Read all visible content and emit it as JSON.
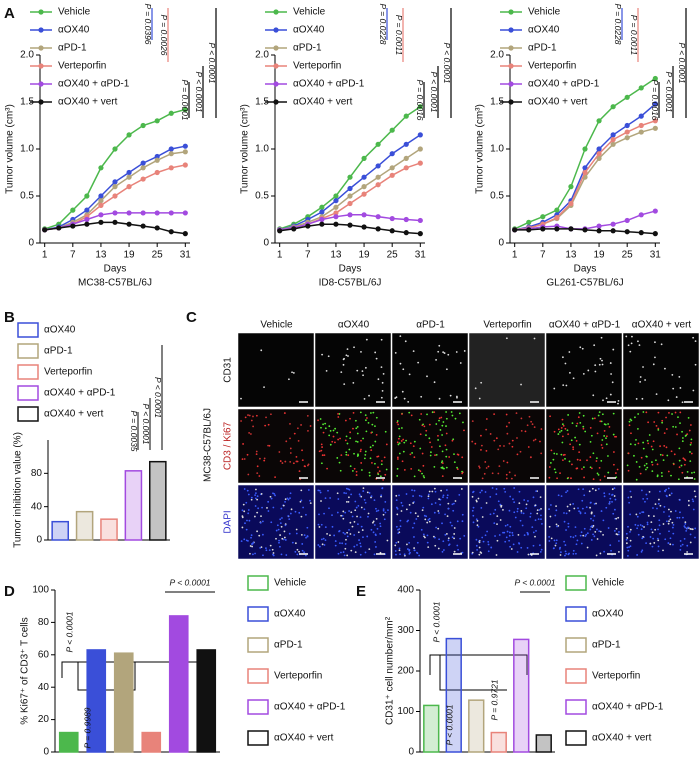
{
  "chart_data": [
    {
      "type": "line",
      "panel": "A",
      "title": "MC38-C57BL/6J",
      "xlabel": "Days",
      "ylabel": "Tumor volume (cm³)",
      "x": [
        1,
        4,
        7,
        10,
        13,
        16,
        19,
        22,
        25,
        28,
        31
      ],
      "xlim": [
        0,
        32
      ],
      "xticks": [
        1,
        7,
        13,
        19,
        25,
        31
      ],
      "ylim": [
        0,
        2.0
      ],
      "yticks": [
        0,
        0.5,
        {
          "value": 1.0,
          "label": "1.0"
        },
        1.5,
        {
          "value": 2.0,
          "label": "2.0"
        }
      ],
      "legend": "top-left",
      "series": [
        {
          "name": "Vehicle",
          "color": "#4cb84c",
          "values": [
            0.15,
            0.2,
            0.35,
            0.5,
            0.8,
            1.0,
            1.15,
            1.25,
            1.3,
            1.38,
            1.42
          ]
        },
        {
          "name": "αOX40",
          "color": "#3a4fd8",
          "values": [
            0.14,
            0.17,
            0.25,
            0.35,
            0.5,
            0.65,
            0.75,
            0.85,
            0.92,
            1.0,
            1.03
          ]
        },
        {
          "name": "αPD-1",
          "color": "#b2a57c",
          "values": [
            0.14,
            0.16,
            0.22,
            0.3,
            0.45,
            0.6,
            0.7,
            0.8,
            0.88,
            0.95,
            0.97
          ]
        },
        {
          "name": "Verteporfin",
          "color": "#e8837a",
          "values": [
            0.14,
            0.16,
            0.2,
            0.28,
            0.4,
            0.5,
            0.6,
            0.68,
            0.75,
            0.8,
            0.83
          ]
        },
        {
          "name": "αOX40 + αPD-1",
          "color": "#a24ae0",
          "values": [
            0.14,
            0.16,
            0.2,
            0.25,
            0.3,
            0.32,
            0.32,
            0.32,
            0.32,
            0.32,
            0.32
          ]
        },
        {
          "name": "αOX40 + vert",
          "color": "#111111",
          "values": [
            0.14,
            0.16,
            0.18,
            0.2,
            0.22,
            0.22,
            0.2,
            0.18,
            0.16,
            0.12,
            0.1
          ]
        }
      ],
      "annotations": [
        "P = 0.0396",
        "P = 0.0026",
        "P < 0.0001",
        "P < 0.0001",
        "P = 0.0001"
      ]
    },
    {
      "type": "line",
      "panel": "",
      "title": "ID8-C57BL/6J",
      "xlabel": "Days",
      "ylabel": "Tumor volume (cm³)",
      "x": [
        1,
        4,
        7,
        10,
        13,
        16,
        19,
        22,
        25,
        28,
        31
      ],
      "xlim": [
        0,
        32
      ],
      "xticks": [
        1,
        7,
        13,
        19,
        25,
        31
      ],
      "ylim": [
        0,
        2.0
      ],
      "yticks": [
        0,
        0.5,
        {
          "value": 1.0,
          "label": "1.0"
        },
        1.5,
        {
          "value": 2.0,
          "label": "2.0"
        }
      ],
      "legend": "top-left",
      "series": [
        {
          "name": "Vehicle",
          "color": "#4cb84c",
          "values": [
            0.15,
            0.2,
            0.28,
            0.38,
            0.5,
            0.7,
            0.9,
            1.05,
            1.2,
            1.35,
            1.45
          ]
        },
        {
          "name": "αOX40",
          "color": "#3a4fd8",
          "values": [
            0.14,
            0.18,
            0.25,
            0.33,
            0.45,
            0.58,
            0.7,
            0.82,
            0.95,
            1.05,
            1.15
          ]
        },
        {
          "name": "αPD-1",
          "color": "#b2a57c",
          "values": [
            0.14,
            0.17,
            0.22,
            0.28,
            0.38,
            0.5,
            0.6,
            0.7,
            0.8,
            0.9,
            1.0
          ]
        },
        {
          "name": "Verteporfin",
          "color": "#e8837a",
          "values": [
            0.14,
            0.16,
            0.2,
            0.26,
            0.32,
            0.42,
            0.52,
            0.62,
            0.72,
            0.8,
            0.85
          ]
        },
        {
          "name": "αOX40 + αPD-1",
          "color": "#a24ae0",
          "values": [
            0.14,
            0.16,
            0.2,
            0.25,
            0.28,
            0.3,
            0.3,
            0.28,
            0.26,
            0.25,
            0.24
          ]
        },
        {
          "name": "αOX40 + vert",
          "color": "#111111",
          "values": [
            0.13,
            0.15,
            0.18,
            0.2,
            0.2,
            0.19,
            0.17,
            0.15,
            0.13,
            0.11,
            0.1
          ]
        }
      ],
      "annotations": [
        "P = 0.0228",
        "P = 0.0011",
        "P < 0.0001",
        "P < 0.0001",
        "P = 0.0016"
      ]
    },
    {
      "type": "line",
      "panel": "",
      "title": "GL261-C57BL/6J",
      "xlabel": "Days",
      "ylabel": "Tumor volume (cm³)",
      "x": [
        1,
        4,
        7,
        10,
        13,
        16,
        19,
        22,
        25,
        28,
        31
      ],
      "xlim": [
        0,
        32
      ],
      "xticks": [
        1,
        7,
        13,
        19,
        25,
        31
      ],
      "ylim": [
        0,
        2.0
      ],
      "yticks": [
        0,
        0.5,
        {
          "value": 1.0,
          "label": "1.0"
        },
        1.5,
        {
          "value": 2.0,
          "label": "2.0"
        }
      ],
      "legend": "top-left",
      "series": [
        {
          "name": "Vehicle",
          "color": "#4cb84c",
          "values": [
            0.15,
            0.22,
            0.28,
            0.35,
            0.6,
            1.0,
            1.3,
            1.45,
            1.55,
            1.65,
            1.75
          ]
        },
        {
          "name": "αOX40",
          "color": "#3a4fd8",
          "values": [
            0.14,
            0.17,
            0.22,
            0.3,
            0.45,
            0.8,
            1.0,
            1.15,
            1.25,
            1.35,
            1.48
          ]
        },
        {
          "name": "αPD-1",
          "color": "#b2a57c",
          "values": [
            0.14,
            0.16,
            0.2,
            0.26,
            0.4,
            0.7,
            0.9,
            1.05,
            1.12,
            1.18,
            1.22
          ]
        },
        {
          "name": "Verteporfin",
          "color": "#e8837a",
          "values": [
            0.14,
            0.16,
            0.2,
            0.27,
            0.42,
            0.75,
            0.95,
            1.1,
            1.18,
            1.25,
            1.3
          ]
        },
        {
          "name": "αOX40 + αPD-1",
          "color": "#a24ae0",
          "values": [
            0.14,
            0.15,
            0.17,
            0.18,
            0.15,
            0.15,
            0.18,
            0.2,
            0.24,
            0.3,
            0.34
          ]
        },
        {
          "name": "αOX40 + vert",
          "color": "#111111",
          "values": [
            0.14,
            0.14,
            0.15,
            0.15,
            0.15,
            0.14,
            0.13,
            0.13,
            0.12,
            0.11,
            0.1
          ]
        }
      ],
      "annotations": [
        "P = 0.0228",
        "P = 0.0011",
        "P < 0.0001",
        "P < 0.0001",
        "P = 0.0016"
      ]
    },
    {
      "type": "bar",
      "panel": "B",
      "ylabel": "Tumor inhibition value (%)",
      "bar_filled": false,
      "legend": "top-left",
      "categories": [
        "αOX40",
        "αPD-1",
        "Verteporfin",
        "αOX40 + αPD-1",
        "αOX40 + vert"
      ],
      "colors": [
        "#3a4fd8",
        "#b2a57c",
        "#e8837a",
        "#a24ae0",
        "#111111"
      ],
      "values": [
        22,
        34,
        25,
        83,
        94
      ],
      "ylim": [
        0,
        120
      ],
      "yticks": [
        0,
        40,
        80
      ],
      "annotations": [
        "P < 0.0001",
        "P < 0.0001",
        "P = 0.0035"
      ]
    },
    {
      "type": "bar",
      "panel": "D",
      "ylabel": "% Ki67⁺ of CD3⁺ T cells",
      "bar_filled": true,
      "legend": "right",
      "categories": [
        "Vehicle",
        "αOX40",
        "αPD-1",
        "Verteporfin",
        "αOX40 + αPD-1",
        "αOX40 + vert"
      ],
      "colors": [
        "#4cb84c",
        "#3a4fd8",
        "#b2a57c",
        "#e8837a",
        "#a24ae0",
        "#111111"
      ],
      "values": [
        12,
        63,
        61,
        12,
        84,
        63
      ],
      "ylim": [
        0,
        100
      ],
      "yticks": [
        0,
        20,
        40,
        60,
        80,
        100
      ],
      "annotations": [
        "P < 0.0001",
        "P = 0.9989",
        "P < 0.0001"
      ]
    },
    {
      "type": "bar",
      "panel": "E",
      "ylabel": "CD31⁺ cell number/mm²",
      "bar_filled": false,
      "legend": "right",
      "categories": [
        "Vehicle",
        "αOX40",
        "αPD-1",
        "Verteporfin",
        "αOX40 + αPD-1",
        "αOX40 + vert"
      ],
      "colors": [
        "#4cb84c",
        "#3a4fd8",
        "#b2a57c",
        "#e8837a",
        "#a24ae0",
        "#111111"
      ],
      "values": [
        115,
        280,
        128,
        48,
        278,
        42
      ],
      "ylim": [
        0,
        400
      ],
      "yticks": [
        0,
        100,
        200,
        300,
        400
      ],
      "annotations": [
        "P < 0.0001",
        "P = 0.9721",
        "P < 0.0001",
        "P < 0.0001"
      ]
    }
  ],
  "panel_c": {
    "panel": "C",
    "model": "MC38-C57BL/6J",
    "columns": [
      "Vehicle",
      "αOX40",
      "αPD-1",
      "Verteporfin",
      "αOX40 + αPD-1",
      "αOX40 + vert"
    ],
    "rows": [
      "CD31",
      "CD3 / Ki67",
      "DAPI"
    ]
  }
}
